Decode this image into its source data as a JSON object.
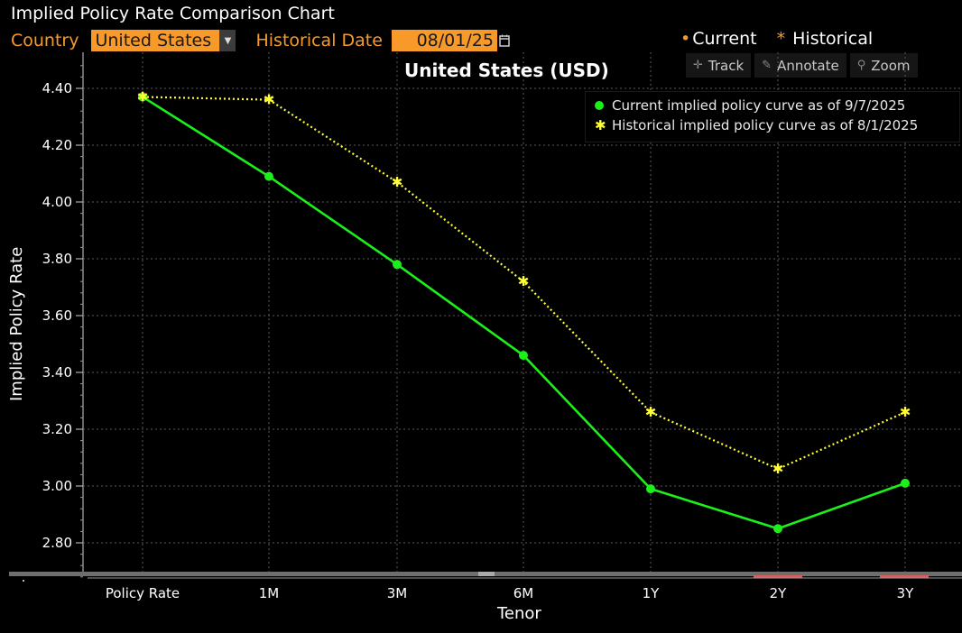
{
  "window": {
    "title": "Implied Policy Rate Comparison Chart"
  },
  "controls": {
    "country_label": "Country",
    "country_value": "United States",
    "historical_date_label": "Historical Date",
    "historical_date_value": "08/01/25"
  },
  "toggles": {
    "current": "Current",
    "historical": "Historical"
  },
  "toolbar": {
    "track": "Track",
    "annotate": "Annotate",
    "zoom": "Zoom"
  },
  "colors": {
    "accent": "#f79a2a",
    "current": "#1bf01b",
    "historical": "#ffff33",
    "background": "#000000"
  },
  "chart_data": {
    "type": "line",
    "title": "United States (USD)",
    "xlabel": "Tenor",
    "ylabel": "Implied Policy Rate",
    "categories": [
      "Policy Rate",
      "1M",
      "3M",
      "6M",
      "1Y",
      "2Y",
      "3Y"
    ],
    "ylim": [
      2.68,
      4.48
    ],
    "yticks": [
      "2.80",
      "3.00",
      "3.20",
      "3.40",
      "3.60",
      "3.80",
      "4.00",
      "4.20",
      "4.40"
    ],
    "grid": true,
    "legend_position": "top-right",
    "series": [
      {
        "name": "Current implied policy curve as of 9/7/2025",
        "style": "solid",
        "marker": "dot",
        "values": [
          4.37,
          4.09,
          3.78,
          3.46,
          2.99,
          2.85,
          3.01
        ]
      },
      {
        "name": "Historical implied policy curve as of 8/1/2025",
        "style": "dotted",
        "marker": "star",
        "values": [
          4.37,
          4.36,
          4.07,
          3.72,
          3.26,
          3.06,
          3.26
        ]
      }
    ]
  }
}
